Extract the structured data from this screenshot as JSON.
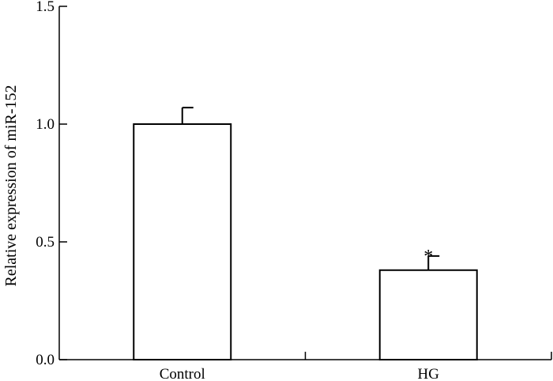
{
  "chart_data": {
    "type": "bar",
    "title": "",
    "xlabel": "",
    "ylabel": "Relative expression of miR-152",
    "ylim": [
      0,
      1.5
    ],
    "yticks": [
      0.0,
      0.5,
      1.0,
      1.5
    ],
    "ytick_labels": [
      "0.0",
      "0.5",
      "1.0",
      "1.5"
    ],
    "categories": [
      "Control",
      "HG"
    ],
    "values": [
      1.0,
      0.38
    ],
    "error": [
      0.07,
      0.06
    ],
    "annotations": [
      "",
      "*"
    ],
    "grid": false,
    "legend": "none",
    "bar_fill": "#ffffff",
    "stroke_color": "#000000"
  }
}
